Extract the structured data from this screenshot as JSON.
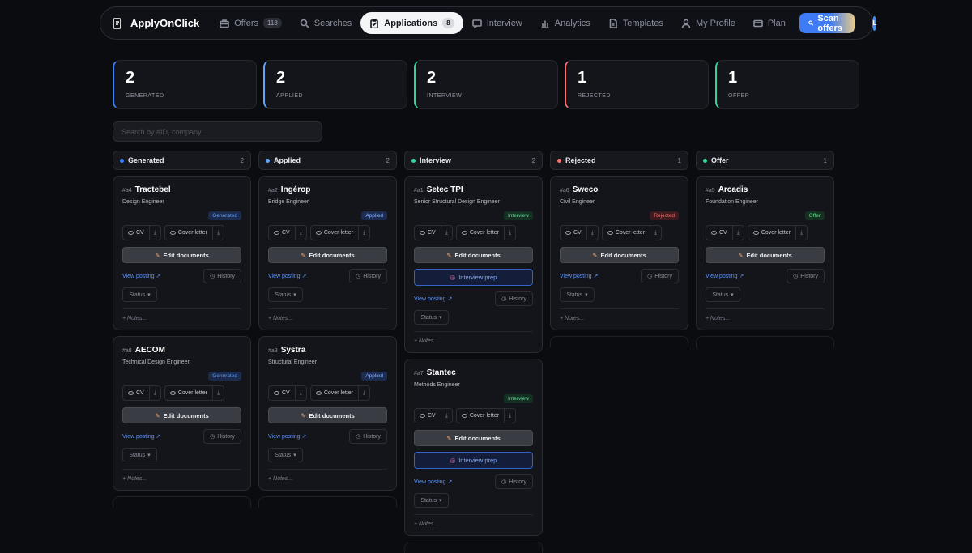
{
  "brand": {
    "name": "ApplyOnClick"
  },
  "nav": [
    {
      "label": "Offers",
      "icon": "briefcase-icon",
      "count": "118"
    },
    {
      "label": "Searches",
      "icon": "search-icon",
      "count": ""
    },
    {
      "label": "Applications",
      "icon": "clipboard-icon",
      "count": "8",
      "active": true
    },
    {
      "label": "Interview",
      "icon": "chat-icon",
      "count": ""
    },
    {
      "label": "Analytics",
      "icon": "bar-chart-icon",
      "count": ""
    },
    {
      "label": "Templates",
      "icon": "document-icon",
      "count": ""
    },
    {
      "label": "My Profile",
      "icon": "user-icon",
      "count": ""
    },
    {
      "label": "Plan",
      "icon": "credit-card-icon",
      "count": ""
    }
  ],
  "scan_label": "Scan offers",
  "avatar_initial": "L",
  "stats": [
    {
      "num": "2",
      "label": "GENERATED",
      "color": "#3b82f6"
    },
    {
      "num": "2",
      "label": "APPLIED",
      "color": "#60a5fa"
    },
    {
      "num": "2",
      "label": "INTERVIEW",
      "color": "#34d399"
    },
    {
      "num": "1",
      "label": "REJECTED",
      "color": "#f87171"
    },
    {
      "num": "1",
      "label": "OFFER",
      "color": "#34d399"
    }
  ],
  "search_placeholder": "Search by #ID, company...",
  "labels": {
    "cv": "CV",
    "cover": "Cover letter",
    "edit": "Edit documents",
    "prep": "Interview prep",
    "view": "View posting",
    "history": "History",
    "status": "Status",
    "notes": "+ Notes..."
  },
  "columns": [
    {
      "title": "Generated",
      "count": "2",
      "dot": "#3b82f6",
      "cards": [
        {
          "id": "#a4",
          "company": "Tractebel",
          "role": "Design Engineer",
          "badge": "Generated",
          "btype": "b-gen"
        },
        {
          "id": "#a8",
          "company": "AECOM",
          "role": "Technical Design Engineer",
          "badge": "Generated",
          "btype": "b-gen"
        }
      ]
    },
    {
      "title": "Applied",
      "count": "2",
      "dot": "#60a5fa",
      "cards": [
        {
          "id": "#a2",
          "company": "Ingérop",
          "role": "Bridge Engineer",
          "badge": "Applied",
          "btype": "b-app"
        },
        {
          "id": "#a3",
          "company": "Systra",
          "role": "Structural Engineer",
          "badge": "Applied",
          "btype": "b-app"
        }
      ]
    },
    {
      "title": "Interview",
      "count": "2",
      "dot": "#34d399",
      "cards": [
        {
          "id": "#a1",
          "company": "Setec TPI",
          "role": "Senior Structural Design Engineer",
          "badge": "Interview",
          "btype": "b-int",
          "prep": true
        },
        {
          "id": "#a7",
          "company": "Stantec",
          "role": "Methods Engineer",
          "badge": "Interview",
          "btype": "b-int",
          "prep": true
        }
      ]
    },
    {
      "title": "Rejected",
      "count": "1",
      "dot": "#f87171",
      "cards": [
        {
          "id": "#a6",
          "company": "Sweco",
          "role": "Civil Engineer",
          "badge": "Rejected",
          "btype": "b-rej"
        }
      ]
    },
    {
      "title": "Offer",
      "count": "1",
      "dot": "#34d399",
      "cards": [
        {
          "id": "#a5",
          "company": "Arcadis",
          "role": "Foundation Engineer",
          "badge": "Offer",
          "btype": "b-off"
        }
      ]
    }
  ]
}
